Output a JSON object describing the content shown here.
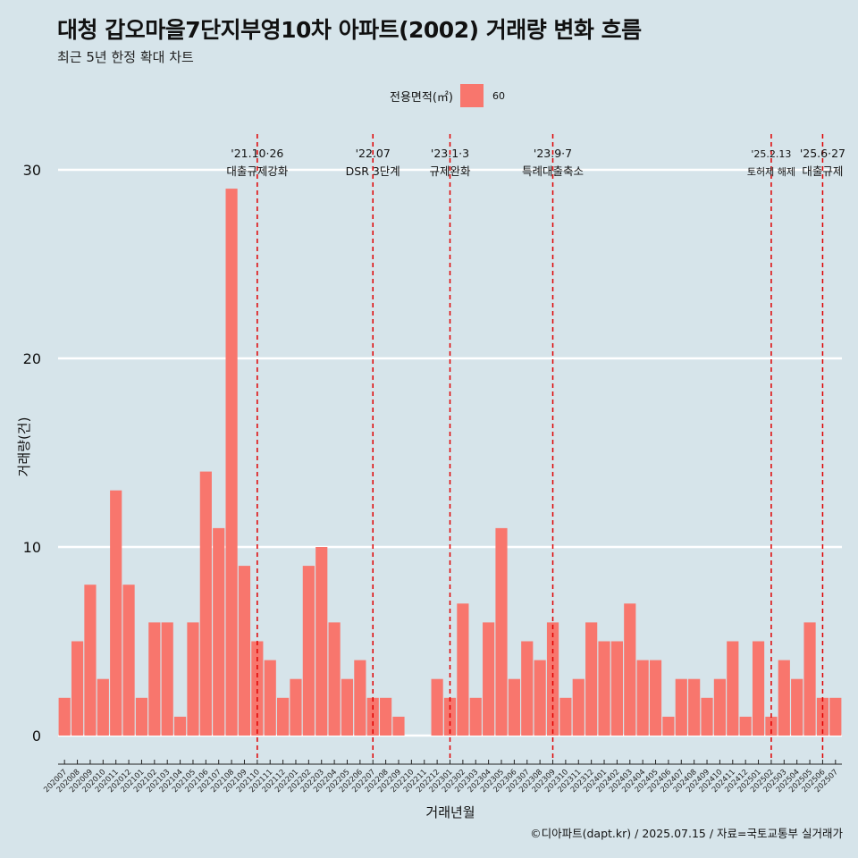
{
  "title": "대청 갑오마을7단지부영10차 아파트(2002) 거래량 변화 흐름",
  "subtitle": "최근 5년 한정 확대 차트",
  "legend": {
    "title": "전용면적(㎡)",
    "item": "60",
    "color": "#f8766d"
  },
  "caption": "©디아파트(dapt.kr) / 2025.07.15 / 자료=국토교통부 실거래가",
  "colors": {
    "background": "#d6e4ea",
    "bar": "#f8766d",
    "gridline": "#ffffff",
    "event_line": "#e00000"
  },
  "chart_data": {
    "type": "bar",
    "xlabel": "거래년월",
    "ylabel": "거래량(건)",
    "ylim": [
      0,
      30
    ],
    "yticks": [
      0,
      10,
      20,
      30
    ],
    "grid": true,
    "legend_position": "top",
    "series": [
      {
        "name": "60",
        "categories": [
          "202007",
          "202008",
          "202009",
          "202010",
          "202011",
          "202012",
          "202101",
          "202102",
          "202103",
          "202104",
          "202105",
          "202106",
          "202107",
          "202108",
          "202109",
          "202110",
          "202111",
          "202112",
          "202201",
          "202202",
          "202203",
          "202204",
          "202205",
          "202206",
          "202207",
          "202208",
          "202209",
          "202210",
          "202211",
          "202212",
          "202301",
          "202302",
          "202303",
          "202304",
          "202305",
          "202306",
          "202307",
          "202308",
          "202309",
          "202310",
          "202311",
          "202312",
          "202401",
          "202402",
          "202403",
          "202404",
          "202405",
          "202406",
          "202407",
          "202408",
          "202409",
          "202410",
          "202411",
          "202412",
          "202501",
          "202502",
          "202503",
          "202504",
          "202505",
          "202506",
          "202507"
        ],
        "values": [
          2,
          5,
          8,
          3,
          13,
          8,
          2,
          6,
          6,
          1,
          6,
          14,
          11,
          29,
          9,
          5,
          4,
          2,
          3,
          9,
          10,
          6,
          3,
          4,
          2,
          2,
          1,
          0,
          0,
          3,
          2,
          7,
          2,
          6,
          11,
          3,
          5,
          4,
          6,
          2,
          3,
          6,
          5,
          5,
          7,
          4,
          4,
          1,
          3,
          3,
          2,
          3,
          5,
          1,
          5,
          1,
          4,
          3,
          6,
          2,
          2
        ]
      }
    ],
    "annotations": [
      {
        "x": "202110",
        "date": "'21.10·26",
        "label": "대출규제강화"
      },
      {
        "x": "202207",
        "date": "'22.07",
        "label": "DSR 3단계"
      },
      {
        "x": "202301",
        "date": "'23.1·3",
        "label": "규제완화"
      },
      {
        "x": "202309",
        "date": "'23.9·7",
        "label": "특례대출축소"
      },
      {
        "x": "202502",
        "date": "'25.2.13",
        "label": "토허제 해제"
      },
      {
        "x": "202506",
        "date": "'25.6·27",
        "label": "대출규제"
      }
    ]
  }
}
